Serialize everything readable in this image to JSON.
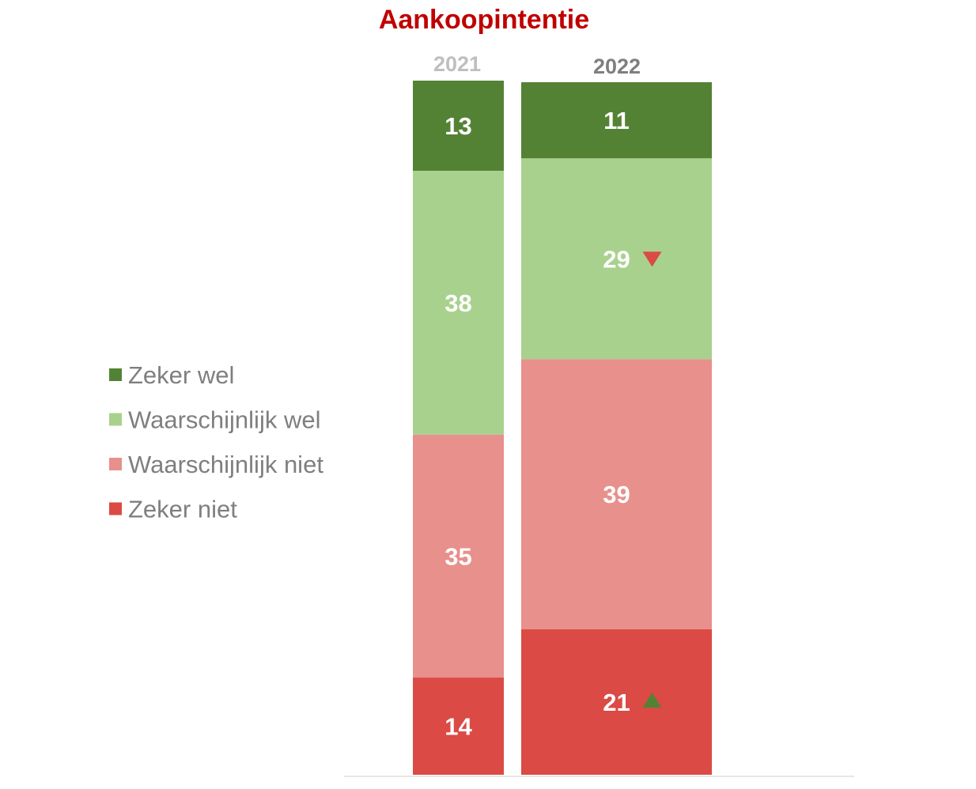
{
  "chart_data": {
    "type": "bar",
    "stacked": true,
    "orientation": "vertical",
    "title": "Aankoopintentie",
    "title_color": "#c00000",
    "categories": [
      "2021",
      "2022"
    ],
    "category_label_colors": [
      "#bfbfbf",
      "#7f7f7f"
    ],
    "series": [
      {
        "name": "Zeker wel",
        "color": "#548235",
        "values": [
          13,
          11
        ]
      },
      {
        "name": "Waarschijnlijk wel",
        "color": "#a9d18e",
        "values": [
          38,
          29
        ]
      },
      {
        "name": "Waarschijnlijk niet",
        "color": "#e8908c",
        "values": [
          35,
          39
        ]
      },
      {
        "name": "Zeker niet",
        "color": "#db4a44",
        "values": [
          14,
          21
        ]
      }
    ],
    "significance_markers": [
      {
        "category": "2022",
        "series": "Waarschijnlijk wel",
        "direction": "down",
        "color": "#db4a44"
      },
      {
        "category": "2022",
        "series": "Zeker niet",
        "direction": "up",
        "color": "#548235"
      }
    ],
    "legend": {
      "position": "left",
      "order": "top-to-bottom"
    },
    "grid": false,
    "ylim": [
      0,
      100
    ]
  }
}
